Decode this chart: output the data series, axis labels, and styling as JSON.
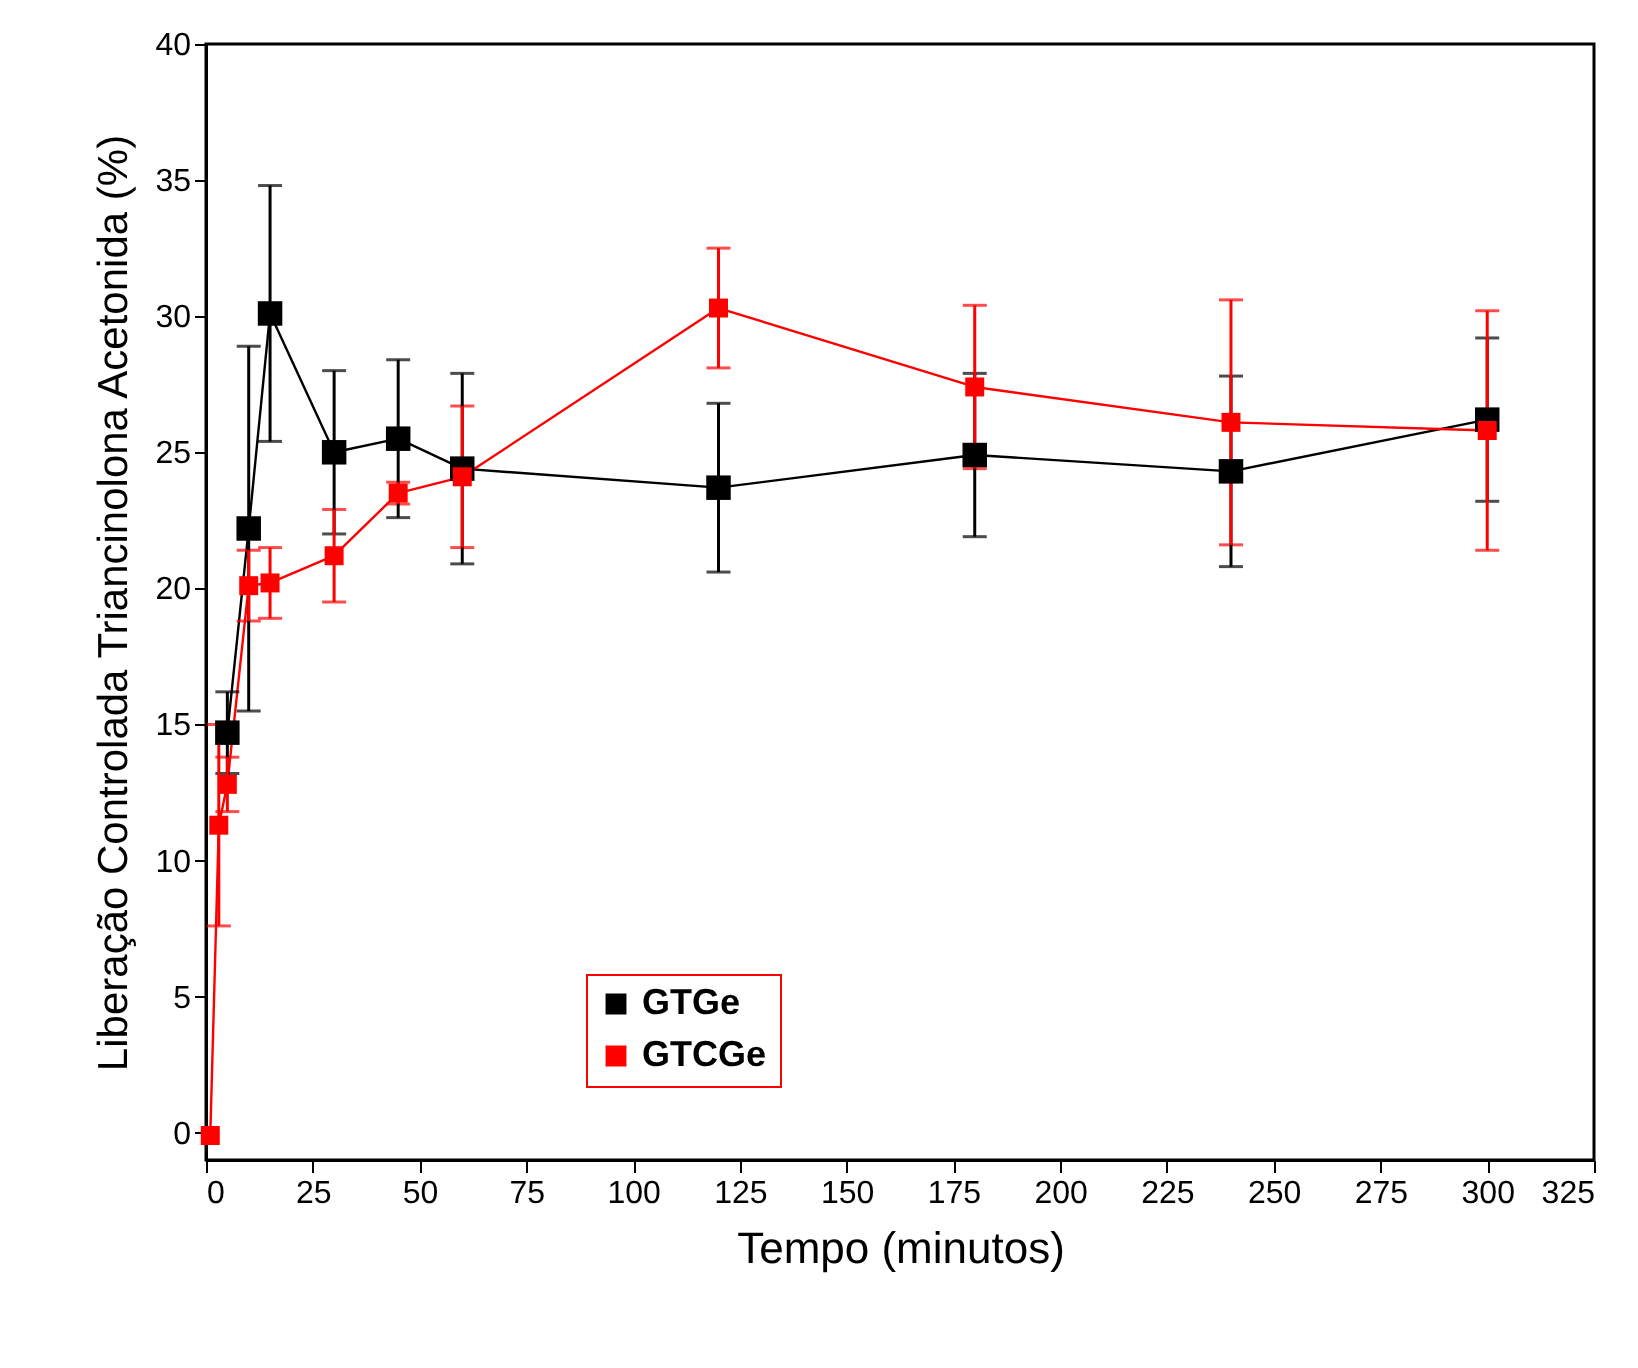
{
  "chart_data": {
    "type": "line",
    "xlabel": "Tempo (minutos)",
    "ylabel": "Liberação Controlada Triancinolona Acetonida (%)",
    "xlim": [
      0,
      325
    ],
    "xticks": [
      0,
      25,
      50,
      75,
      100,
      125,
      150,
      175,
      200,
      225,
      250,
      275,
      300,
      325
    ],
    "ylim": [
      -1,
      40
    ],
    "yticks": [
      0,
      5,
      10,
      15,
      20,
      25,
      30,
      35,
      40
    ],
    "marker": "square",
    "legend": "bottom",
    "grid": false,
    "series": [
      {
        "name": "GTGe",
        "color": "#000000",
        "x": [
          5,
          10,
          15,
          30,
          45,
          60,
          120,
          180,
          240,
          300
        ],
        "values": [
          14.7,
          22.2,
          30.1,
          25.0,
          25.5,
          24.4,
          23.7,
          24.9,
          24.3,
          26.2
        ],
        "errors": [
          1.5,
          6.7,
          4.7,
          3.0,
          2.9,
          3.5,
          3.1,
          3.0,
          3.5,
          3.0
        ]
      },
      {
        "name": "GTCGe",
        "color": "#ff0000",
        "x": [
          1,
          3,
          5,
          10,
          15,
          30,
          45,
          60,
          120,
          180,
          240,
          300
        ],
        "values": [
          -0.1,
          11.3,
          12.8,
          20.1,
          20.2,
          21.2,
          23.5,
          24.1,
          30.3,
          27.4,
          26.1,
          25.8
        ],
        "errors": [
          null,
          3.7,
          1.0,
          1.3,
          1.3,
          1.7,
          0.4,
          2.6,
          2.2,
          3.0,
          4.5,
          4.4
        ]
      }
    ]
  }
}
